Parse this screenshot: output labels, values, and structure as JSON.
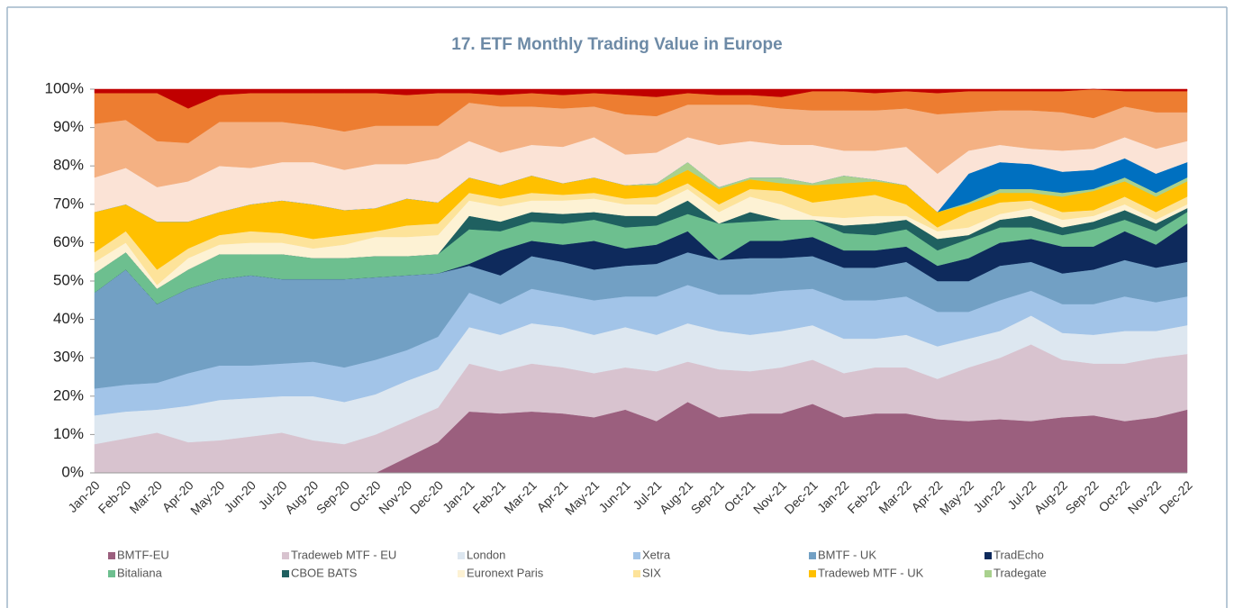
{
  "chart_data": {
    "type": "stacked_area",
    "title": "17. ETF Monthly Trading Value in Europe",
    "categories": [
      "Jan-20",
      "Feb-20",
      "Mar-20",
      "Apr-20",
      "May-20",
      "Jun-20",
      "Jul-20",
      "Aug-20",
      "Sep-20",
      "Oct-20",
      "Nov-20",
      "Dec-20",
      "Jan-21",
      "Feb-21",
      "Mar-21",
      "Apr-21",
      "May-21",
      "Jun-21",
      "Jul-21",
      "Aug-21",
      "Sep-21",
      "Oct-21",
      "Nov-21",
      "Dec-21",
      "Jan-22",
      "Feb-22",
      "Mar-22",
      "Apr-22",
      "May-22",
      "Jun-22",
      "Jul-22",
      "Aug-22",
      "Sep-22",
      "Oct-22",
      "Nov-22",
      "Dec-22"
    ],
    "ylim": [
      0,
      100
    ],
    "yticks": [
      {
        "value": 0,
        "label": "0%"
      },
      {
        "value": 10,
        "label": "10%"
      },
      {
        "value": 20,
        "label": "20%"
      },
      {
        "value": 30,
        "label": "30%"
      },
      {
        "value": 40,
        "label": "40%"
      },
      {
        "value": 50,
        "label": "50%"
      },
      {
        "value": 60,
        "label": "60%"
      },
      {
        "value": 70,
        "label": "70%"
      },
      {
        "value": 80,
        "label": "80%"
      },
      {
        "value": 90,
        "label": "90%"
      },
      {
        "value": 100,
        "label": "100%"
      }
    ],
    "series": [
      {
        "name": "BMTF-EU",
        "color": "#9b5f7e",
        "values": [
          0,
          0,
          0,
          0,
          0,
          0,
          0,
          0,
          0,
          0,
          4,
          8,
          16,
          15.5,
          16,
          15.5,
          14.5,
          16.5,
          13.5,
          18.5,
          14.5,
          15.5,
          15.5,
          18,
          14.5,
          15.5,
          15.5,
          14,
          13.5,
          14,
          13.5,
          14.5,
          15,
          13.5,
          14.5,
          16.5
        ]
      },
      {
        "name": "Tradeweb MTF - EU",
        "color": "#d8c3cf",
        "values": [
          7.5,
          9,
          10.5,
          8,
          8.5,
          9.5,
          10.5,
          8.5,
          7.5,
          10,
          9.5,
          9,
          12.5,
          11,
          12.5,
          12,
          11.5,
          11,
          13,
          10.5,
          12.5,
          11,
          12,
          11.5,
          11.5,
          12,
          12,
          10.5,
          14,
          16,
          20,
          15,
          13.5,
          15,
          15.5,
          14.5
        ]
      },
      {
        "name": "London",
        "color": "#dde7f0",
        "values": [
          7.5,
          7,
          6,
          9.5,
          10.5,
          10,
          9.5,
          11.5,
          11,
          10.5,
          10.5,
          10,
          9.5,
          9.5,
          10.5,
          10.5,
          10,
          10.5,
          9.5,
          10,
          10,
          9.5,
          9.5,
          9,
          9,
          7.5,
          8.5,
          8.5,
          7.5,
          7,
          7.5,
          7,
          7.5,
          8.5,
          7,
          7.5
        ]
      },
      {
        "name": "Xetra",
        "color": "#a2c4e8",
        "values": [
          7,
          7,
          7,
          8.5,
          9,
          8.5,
          8.5,
          9,
          9,
          9,
          8,
          8.5,
          9,
          8,
          9,
          8.5,
          9,
          8,
          10,
          10,
          9.5,
          10.5,
          10.5,
          9.5,
          10,
          10,
          10,
          9,
          7,
          8,
          6.5,
          7.5,
          8,
          9,
          7.5,
          7.5
        ]
      },
      {
        "name": "BMTF - UK",
        "color": "#72a0c4",
        "values": [
          25,
          30,
          20.5,
          22,
          22.5,
          23.5,
          22,
          21.5,
          23,
          21.5,
          19.5,
          16.5,
          7,
          7.5,
          8.5,
          8.5,
          8,
          8,
          8.5,
          8.5,
          9,
          9.5,
          8.5,
          8.5,
          8.5,
          8.5,
          9,
          8,
          8,
          9,
          7.5,
          8,
          9,
          9.5,
          9,
          9
        ]
      },
      {
        "name": "TradEcho",
        "color": "#0e2a5c",
        "values": [
          0,
          0,
          0,
          0,
          0,
          0,
          0,
          0,
          0,
          0,
          0,
          0,
          0.5,
          6.5,
          4,
          4.5,
          7.5,
          4.5,
          5,
          5.5,
          0,
          4.5,
          4.5,
          5,
          4.5,
          4.5,
          4,
          4,
          6,
          6,
          6,
          7,
          6,
          7.5,
          6,
          10
        ]
      },
      {
        "name": "Bitaliana",
        "color": "#6dbf8f",
        "values": [
          5,
          4.5,
          4,
          5,
          6.5,
          5.5,
          6.5,
          5.5,
          5.5,
          5.5,
          5,
          5,
          9,
          5,
          5,
          5.5,
          5.5,
          5.5,
          5,
          4.5,
          9.5,
          5,
          5.5,
          4.5,
          4.5,
          4,
          4.5,
          4,
          5,
          4,
          3,
          3,
          4.5,
          3,
          3.5,
          3
        ]
      },
      {
        "name": "CBOE BATS",
        "color": "#1f6060",
        "values": [
          0,
          0,
          0,
          0,
          0,
          0,
          0,
          0,
          0,
          0,
          0,
          0,
          3.5,
          2.5,
          2.5,
          2.5,
          2,
          3,
          2.5,
          3.5,
          0,
          2.5,
          0,
          0,
          2,
          3,
          2.5,
          3,
          1,
          2,
          3,
          2,
          2,
          2.5,
          2,
          1
        ]
      },
      {
        "name": "Euronext Paris",
        "color": "#fdf2d4",
        "values": [
          3,
          2.5,
          1,
          3,
          2.5,
          3,
          3,
          2.5,
          3.5,
          5,
          5,
          5,
          4,
          4,
          3,
          3.5,
          3.5,
          3,
          3,
          3,
          3,
          4,
          4,
          1,
          2,
          2,
          1,
          2,
          2,
          1.5,
          2,
          2,
          1.5,
          1.5,
          1,
          1
        ]
      },
      {
        "name": "SIX",
        "color": "#fde39a",
        "values": [
          2.5,
          3,
          4,
          2.5,
          2.5,
          3,
          2.5,
          2.5,
          2.5,
          1.5,
          3,
          3,
          2,
          2,
          2,
          1.5,
          1.5,
          1.5,
          2,
          1.5,
          2,
          2,
          3.5,
          3.5,
          5,
          5.5,
          3,
          1,
          4,
          3,
          2,
          2,
          1.5,
          2,
          2,
          2
        ]
      },
      {
        "name": "Tradeweb MTF - UK",
        "color": "#ffc000",
        "values": [
          10.5,
          7,
          12.5,
          7,
          6,
          7,
          8.5,
          9,
          6.5,
          6,
          7,
          5.5,
          4,
          3.5,
          4.5,
          3,
          4,
          3.5,
          3,
          3.5,
          4,
          2.5,
          2,
          4.5,
          4,
          3.5,
          5,
          4,
          2,
          2.5,
          2,
          4,
          5,
          4,
          4,
          4
        ]
      },
      {
        "name": "Tradegate",
        "color": "#a9d18e",
        "values": [
          0,
          0,
          0,
          0,
          0,
          0,
          0,
          0,
          0,
          0,
          0,
          0,
          0,
          0,
          0,
          0,
          0,
          0,
          0.5,
          2,
          0.5,
          0.5,
          1.5,
          0.5,
          2,
          0.5,
          0,
          0,
          0.5,
          1,
          1,
          1,
          0.5,
          1,
          1,
          1
        ]
      },
      {
        "color": "#0070c0",
        "values": [
          0,
          0,
          0,
          0,
          0,
          0,
          0,
          0,
          0,
          0,
          0,
          0,
          0,
          0,
          0,
          0,
          0,
          0,
          0,
          0,
          0,
          0,
          0,
          0,
          0,
          0,
          0,
          0,
          7.5,
          7,
          6.5,
          5.5,
          5,
          5,
          5,
          4
        ]
      },
      {
        "color": "#fbe3d6",
        "values": [
          9,
          9.5,
          9,
          10.5,
          12,
          9.5,
          10,
          11,
          10.5,
          11.5,
          9,
          11.5,
          9.5,
          8.5,
          8,
          9.5,
          10.5,
          8,
          8,
          6.5,
          11,
          9.5,
          8.5,
          10,
          6.5,
          7.5,
          10,
          10,
          6,
          4.5,
          4,
          5.5,
          5.5,
          5.5,
          6.5,
          5.5
        ]
      },
      {
        "color": "#f4b183",
        "values": [
          14,
          12.5,
          12,
          10,
          11.5,
          12,
          10.5,
          9.5,
          10,
          10,
          10,
          8.5,
          10,
          12,
          10,
          10,
          8,
          10.5,
          9.5,
          8.5,
          10.5,
          9.5,
          9.5,
          9,
          10.5,
          10.5,
          10,
          15.5,
          10,
          9,
          10,
          10,
          8,
          8,
          9.5,
          7.5
        ]
      },
      {
        "color": "#ed7d31",
        "values": [
          8,
          7,
          12.5,
          9,
          7,
          7.5,
          7.5,
          8.5,
          10,
          8.5,
          8,
          8.5,
          2.5,
          3,
          3.5,
          3.5,
          3.5,
          5,
          5,
          3,
          2.5,
          2.5,
          3,
          5,
          5,
          4.5,
          4.5,
          5.5,
          5.5,
          5,
          5,
          5.5,
          7.5,
          4,
          5.5,
          5.5
        ]
      },
      {
        "color": "#c00000",
        "values": [
          1,
          1,
          1,
          5,
          1.5,
          1,
          1,
          1,
          1,
          1,
          1.5,
          1,
          1,
          1.5,
          1,
          1.5,
          1,
          1.5,
          2,
          1,
          1.5,
          1.5,
          2,
          0.5,
          0.5,
          1,
          0.5,
          1,
          0.5,
          0.5,
          0.5,
          0.5,
          0,
          0.5,
          0.5,
          0.5
        ]
      }
    ]
  }
}
